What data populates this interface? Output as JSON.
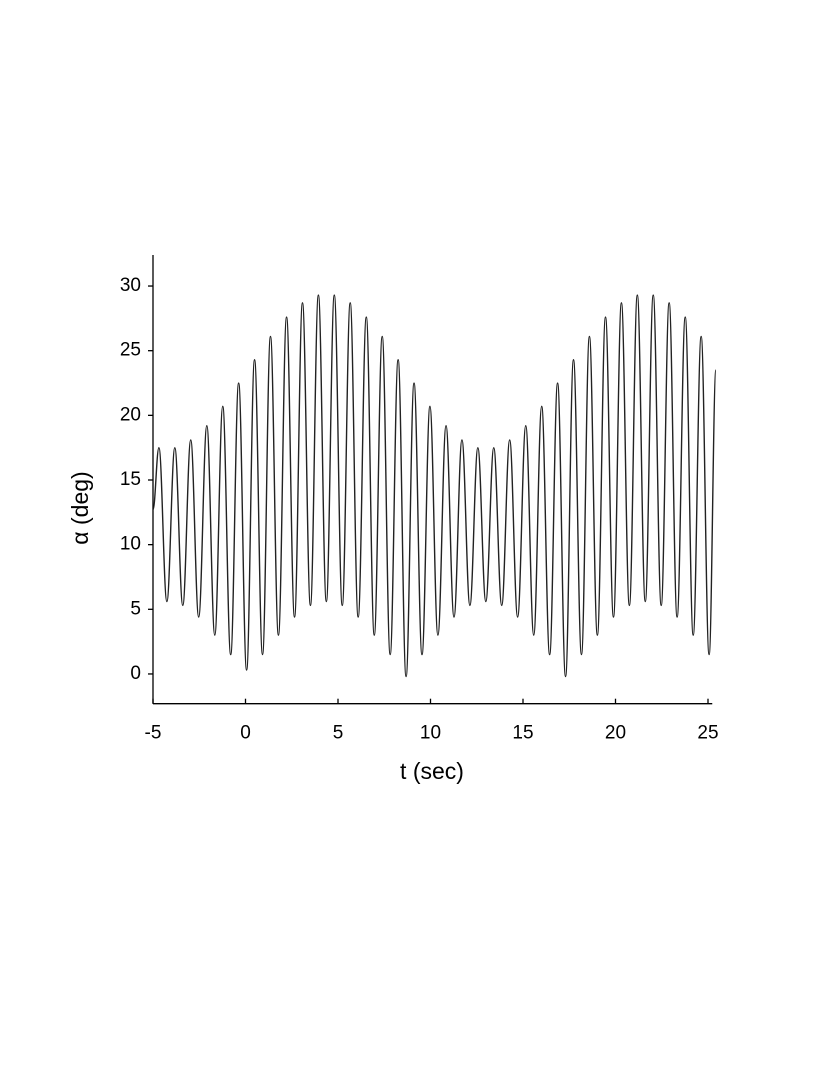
{
  "chart_data": {
    "type": "line",
    "xlabel": "t (sec)",
    "ylabel": "α (deg)",
    "x": [
      -5,
      -4.68,
      -4.25,
      -3.82,
      -3.39,
      -2.96,
      -2.53,
      -2.09,
      -1.66,
      -1.23,
      -0.8,
      -0.37,
      0.06,
      0.49,
      0.92,
      1.35,
      1.78,
      2.22,
      2.65,
      3.08,
      3.51,
      3.94,
      4.37,
      4.8,
      5.23,
      5.66,
      6.09,
      6.53,
      6.96,
      7.39,
      7.82,
      8.25,
      8.68,
      9.11,
      9.54,
      9.97,
      10.4,
      10.84,
      11.27,
      11.7,
      12.13,
      12.56,
      12.99,
      13.42,
      13.85,
      14.28,
      14.71,
      15.15,
      15.58,
      16.01,
      16.44,
      16.87,
      17.3,
      17.73,
      18.16,
      18.59,
      19.02,
      19.46,
      19.89,
      20.32,
      20.75,
      21.18,
      21.61,
      22.04,
      22.47,
      22.9,
      23.33,
      23.77,
      24.2,
      24.63,
      25.06,
      25.43
    ],
    "y": [
      12.7,
      17.5,
      5.6,
      17.5,
      5.3,
      18.1,
      4.4,
      19.2,
      3.0,
      20.7,
      1.5,
      22.5,
      0.3,
      24.3,
      1.5,
      26.1,
      3.0,
      27.6,
      4.4,
      28.7,
      5.3,
      29.3,
      5.6,
      29.3,
      5.3,
      28.7,
      4.4,
      27.6,
      3.0,
      26.1,
      1.5,
      24.3,
      -0.2,
      22.5,
      1.5,
      20.7,
      3.0,
      19.2,
      4.4,
      18.1,
      5.3,
      17.5,
      5.6,
      17.5,
      5.3,
      18.1,
      4.4,
      19.2,
      3.0,
      20.7,
      1.5,
      22.5,
      -0.2,
      24.3,
      1.5,
      26.1,
      3.0,
      27.6,
      4.4,
      28.7,
      5.3,
      29.3,
      5.6,
      29.3,
      5.3,
      28.7,
      4.4,
      27.6,
      3.0,
      26.1,
      1.5,
      23.5
    ],
    "color": "#222222",
    "xlim": [
      -5,
      25.5
    ],
    "ylim": [
      -2.3,
      32.4
    ],
    "xticks": [
      -5,
      0,
      5,
      10,
      15,
      20,
      25
    ],
    "yticks": [
      0,
      5,
      10,
      15,
      20,
      25,
      30
    ]
  }
}
